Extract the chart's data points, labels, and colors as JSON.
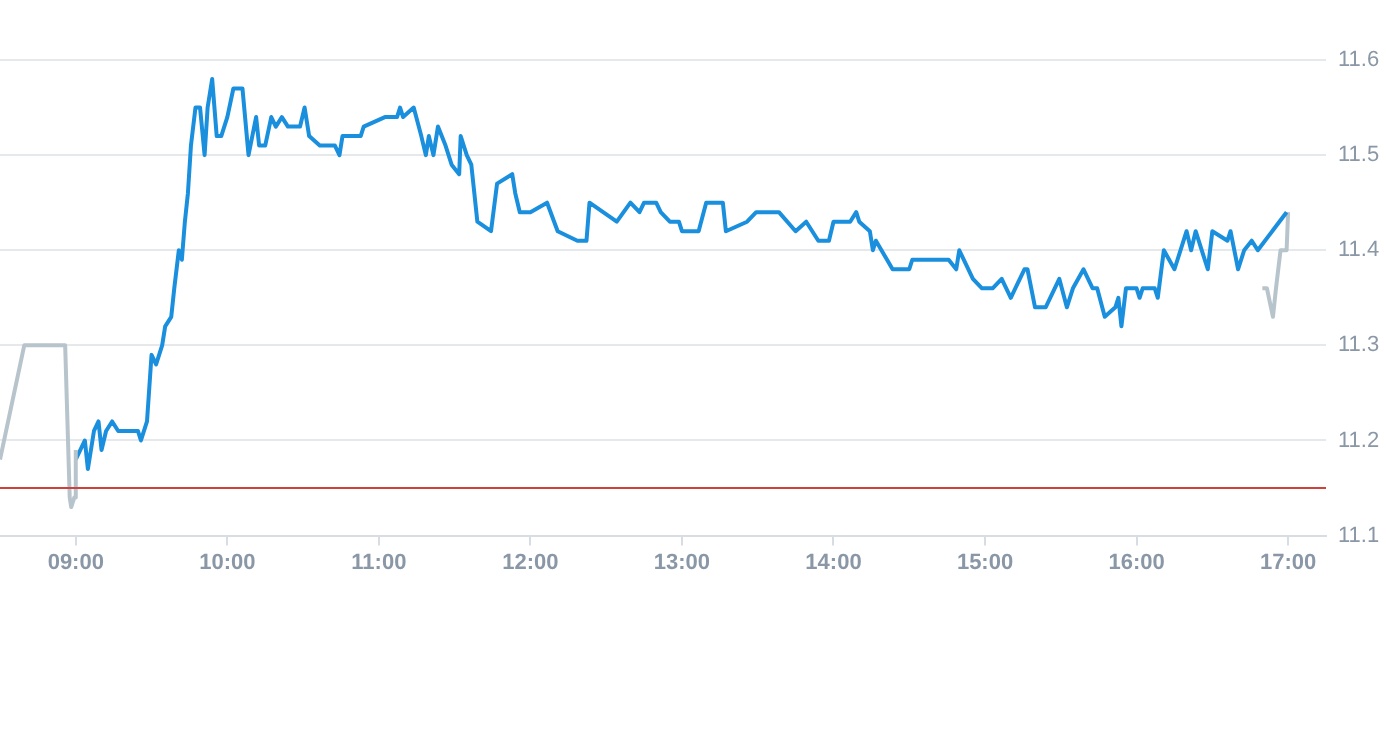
{
  "chart_data": {
    "type": "line",
    "xlim": [
      8.5,
      17.25
    ],
    "ylim": [
      11.1,
      11.6
    ],
    "xticks": [
      {
        "value": 9,
        "label": "09:00"
      },
      {
        "value": 10,
        "label": "10:00"
      },
      {
        "value": 11,
        "label": "11:00"
      },
      {
        "value": 12,
        "label": "12:00"
      },
      {
        "value": 13,
        "label": "13:00"
      },
      {
        "value": 14,
        "label": "14:00"
      },
      {
        "value": 15,
        "label": "15:00"
      },
      {
        "value": 16,
        "label": "16:00"
      },
      {
        "value": 17,
        "label": "17:00"
      }
    ],
    "yticks": [
      11.1,
      11.2,
      11.3,
      11.4,
      11.5,
      11.6
    ],
    "grid": "y",
    "legend": false,
    "marker": "none",
    "line_style": "solid",
    "ref_lines": [
      {
        "axis": "y",
        "value": 11.15,
        "color": "#d0413b"
      }
    ],
    "series": [
      {
        "color": "#b8c4cc",
        "x": [
          8.5,
          8.66,
          8.93,
          8.96,
          8.97,
          8.99,
          9.0
        ],
        "values": [
          11.18,
          11.3,
          11.3,
          11.14,
          11.13,
          11.14,
          11.19
        ]
      },
      {
        "color": "#1a8fdd",
        "x": [
          9.0,
          9.06,
          9.08,
          9.12,
          9.15,
          9.17,
          9.2,
          9.24,
          9.28,
          9.41,
          9.43,
          9.47,
          9.5,
          9.53,
          9.57,
          9.59,
          9.63,
          9.65,
          9.68,
          9.7,
          9.72,
          9.74,
          9.76,
          9.79,
          9.82,
          9.85,
          9.87,
          9.9,
          9.93,
          9.96,
          10.0,
          10.04,
          10.1,
          10.14,
          10.19,
          10.21,
          10.25,
          10.29,
          10.32,
          10.36,
          10.4,
          10.48,
          10.51,
          10.54,
          10.61,
          10.71,
          10.74,
          10.76,
          10.88,
          10.9,
          11.04,
          11.12,
          11.14,
          11.16,
          11.23,
          11.28,
          11.31,
          11.33,
          11.36,
          11.39,
          11.44,
          11.48,
          11.53,
          11.54,
          11.58,
          11.61,
          11.65,
          11.74,
          11.78,
          11.88,
          11.9,
          11.93,
          12.0,
          12.11,
          12.18,
          12.31,
          12.37,
          12.39,
          12.57,
          12.66,
          12.72,
          12.75,
          12.83,
          12.86,
          12.92,
          12.98,
          13.0,
          13.11,
          13.16,
          13.27,
          13.29,
          13.43,
          13.49,
          13.64,
          13.75,
          13.82,
          13.9,
          13.97,
          14.0,
          14.11,
          14.15,
          14.17,
          14.24,
          14.26,
          14.28,
          14.39,
          14.5,
          14.52,
          14.76,
          14.81,
          14.83,
          14.92,
          14.98,
          15.05,
          15.11,
          15.17,
          15.26,
          15.28,
          15.33,
          15.4,
          15.49,
          15.54,
          15.58,
          15.65,
          15.71,
          15.74,
          15.79,
          15.86,
          15.88,
          15.9,
          15.93,
          16.0,
          16.02,
          16.04,
          16.12,
          16.14,
          16.18,
          16.25,
          16.33,
          16.36,
          16.39,
          16.47,
          16.5,
          16.6,
          16.62,
          16.67,
          16.71,
          16.76,
          16.8,
          16.99
        ],
        "values": [
          11.18,
          11.2,
          11.17,
          11.21,
          11.22,
          11.19,
          11.21,
          11.22,
          11.21,
          11.21,
          11.2,
          11.22,
          11.29,
          11.28,
          11.3,
          11.32,
          11.33,
          11.36,
          11.4,
          11.39,
          11.43,
          11.46,
          11.51,
          11.55,
          11.55,
          11.5,
          11.55,
          11.58,
          11.52,
          11.52,
          11.54,
          11.57,
          11.57,
          11.5,
          11.54,
          11.51,
          11.51,
          11.54,
          11.53,
          11.54,
          11.53,
          11.53,
          11.55,
          11.52,
          11.51,
          11.51,
          11.5,
          11.52,
          11.52,
          11.53,
          11.54,
          11.54,
          11.55,
          11.54,
          11.55,
          11.52,
          11.5,
          11.52,
          11.5,
          11.53,
          11.51,
          11.49,
          11.48,
          11.52,
          11.5,
          11.49,
          11.43,
          11.42,
          11.47,
          11.48,
          11.46,
          11.44,
          11.44,
          11.45,
          11.42,
          11.41,
          11.41,
          11.45,
          11.43,
          11.45,
          11.44,
          11.45,
          11.45,
          11.44,
          11.43,
          11.43,
          11.42,
          11.42,
          11.45,
          11.45,
          11.42,
          11.43,
          11.44,
          11.44,
          11.42,
          11.43,
          11.41,
          11.41,
          11.43,
          11.43,
          11.44,
          11.43,
          11.42,
          11.4,
          11.41,
          11.38,
          11.38,
          11.39,
          11.39,
          11.38,
          11.4,
          11.37,
          11.36,
          11.36,
          11.37,
          11.35,
          11.38,
          11.38,
          11.34,
          11.34,
          11.37,
          11.34,
          11.36,
          11.38,
          11.36,
          11.36,
          11.33,
          11.34,
          11.35,
          11.32,
          11.36,
          11.36,
          11.35,
          11.36,
          11.36,
          11.35,
          11.4,
          11.38,
          11.42,
          11.4,
          11.42,
          11.38,
          11.42,
          11.41,
          11.42,
          11.38,
          11.4,
          11.41,
          11.4,
          11.44
        ]
      },
      {
        "color": "#b8c4cc",
        "x": [
          16.83,
          16.86,
          16.9,
          16.92,
          16.95,
          16.99,
          17.0
        ],
        "values": [
          11.36,
          11.36,
          11.33,
          11.36,
          11.4,
          11.4,
          11.44
        ]
      }
    ]
  }
}
